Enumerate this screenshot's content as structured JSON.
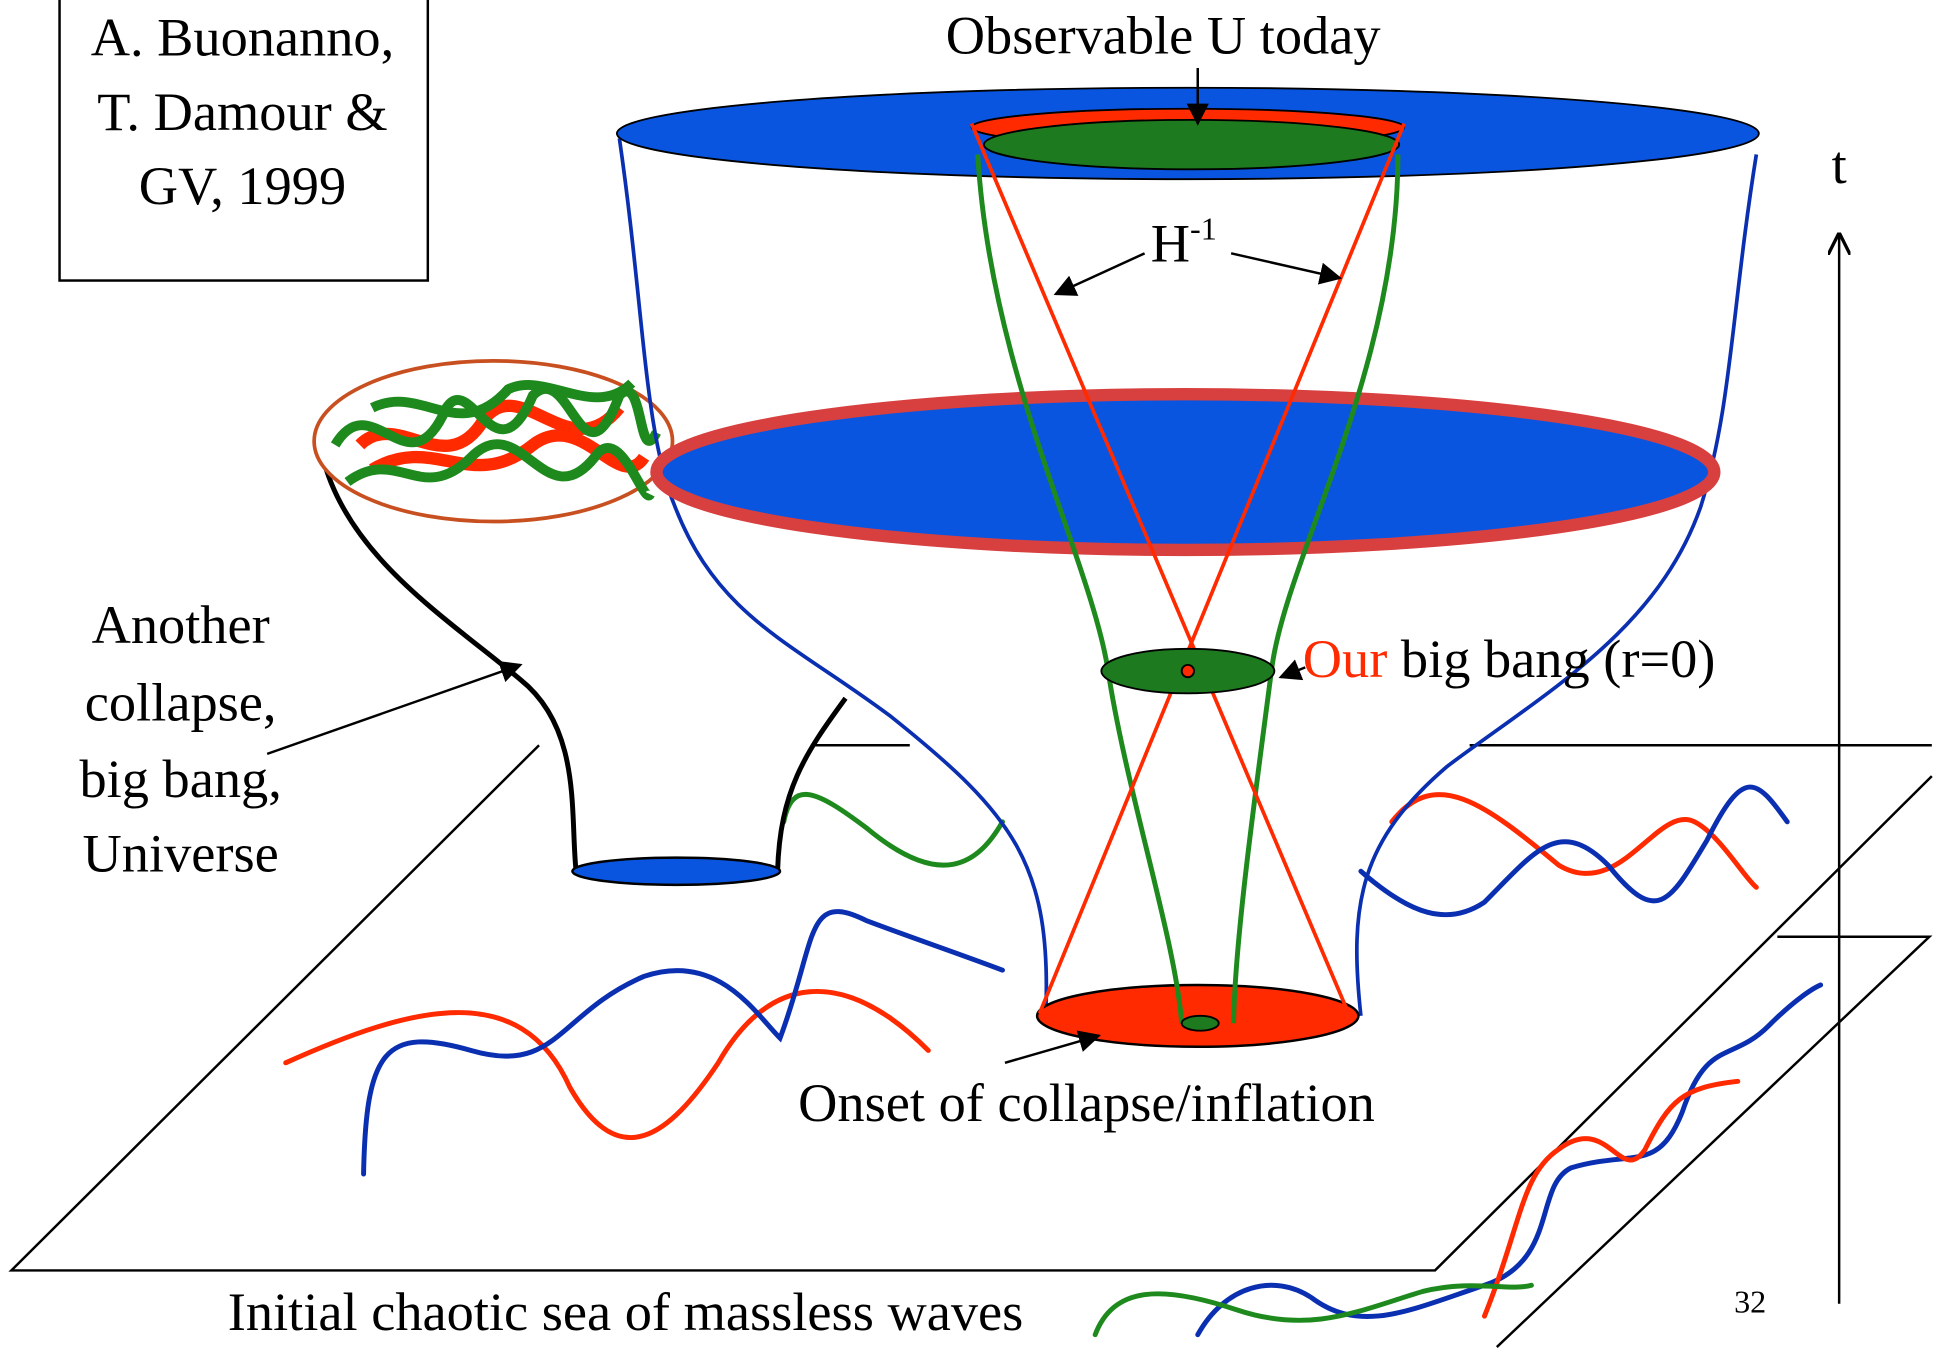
{
  "credit": {
    "lines": [
      "A. Buonanno,",
      "T. Damour &",
      "GV, 1999"
    ]
  },
  "labels": {
    "observable": "Observable U today",
    "time_axis": "t",
    "hubble": "H",
    "hubble_exp": "-1",
    "our": "Our",
    "big_bang": " big bang (r=0)",
    "another": [
      "Another",
      "collapse,",
      "big bang,",
      "Universe"
    ],
    "onset": "Onset of collapse/inflation",
    "sea": "Initial chaotic sea of massless waves",
    "page_number": "32"
  }
}
